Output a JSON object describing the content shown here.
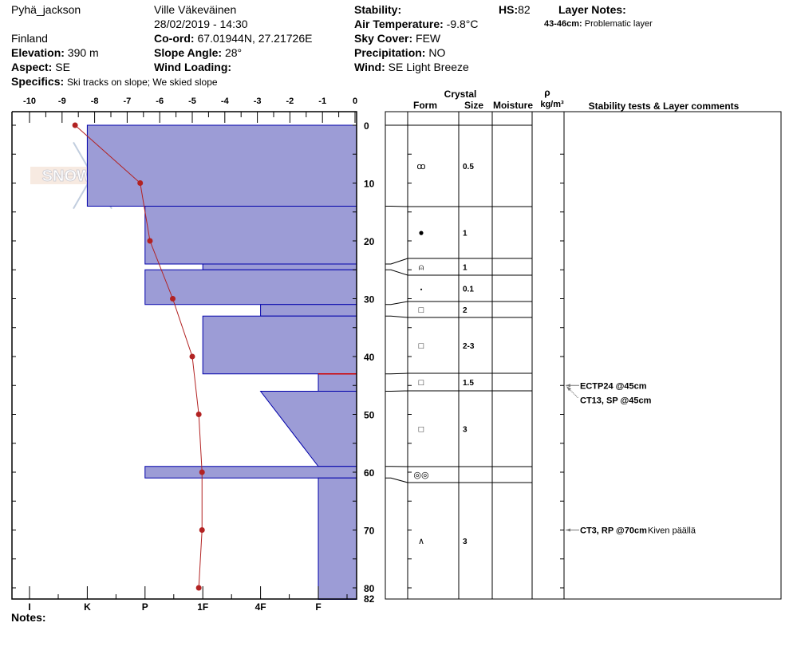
{
  "header": {
    "location": "Pyhä_jackson",
    "observer": "Ville Väkeväinen",
    "datetime": "28/02/2019 - 14:30",
    "country": "Finland",
    "coord_label": "Co-ord:",
    "coord": "67.01944N, 27.21726E",
    "elevation_label": "Elevation:",
    "elevation": "390 m",
    "slope_label": "Slope Angle:",
    "slope": "28°",
    "aspect_label": "Aspect:",
    "aspect": "SE",
    "wind_loading_label": "Wind Loading:",
    "wind_loading": "",
    "specifics_label": "Specifics:",
    "specifics": "Ski tracks on slope; We skied slope",
    "stability_label": "Stability:",
    "stability": "",
    "air_temp_label": "Air Temperature:",
    "air_temp": "-9.8°C",
    "sky_label": "Sky Cover:",
    "sky": "FEW",
    "precip_label": "Precipitation:",
    "precip": "NO",
    "wind_label": "Wind:",
    "wind": "SE  Light Breeze",
    "hs_label": "HS:",
    "hs": "82",
    "layer_notes_label": "Layer Notes:",
    "layer_notes": [
      {
        "range": "43-46cm:",
        "text": "Problematic layer"
      }
    ]
  },
  "notes_label": "Notes:",
  "logo_text": "SNOW PILOT",
  "table_headers": {
    "crystal": "Crystal",
    "form": "Form",
    "size": "Size",
    "moisture": "Moisture",
    "rho": "ρ",
    "density": "kg/m³",
    "comments": "Stability tests & Layer comments"
  },
  "colors": {
    "layer_fill": "#9c9cd6",
    "layer_stroke": "#0000aa",
    "temp_line": "#b22222"
  },
  "chart_data": {
    "type": "snow-profile",
    "temperature_axis": {
      "ticks": [
        -10,
        -9,
        -8,
        -7,
        -6,
        -5,
        -4,
        -3,
        -2,
        -1,
        0
      ],
      "range": [
        -10,
        0
      ],
      "unit": "°C",
      "position": "top"
    },
    "hardness_axis": {
      "ticks": [
        "I",
        "K",
        "P",
        "1F",
        "4F",
        "F"
      ],
      "position": "bottom"
    },
    "depth_axis": {
      "ticks": [
        0,
        10,
        20,
        30,
        40,
        50,
        60,
        70,
        80,
        82
      ],
      "range": [
        0,
        82
      ],
      "unit": "cm"
    },
    "layers": [
      {
        "top": 0,
        "bottom": 14,
        "hardness_top": "K",
        "hardness_bottom": "K",
        "form": "precipitation-particles",
        "size": "0.5"
      },
      {
        "top": 14,
        "bottom": 24,
        "hardness_top": "P",
        "hardness_bottom": "P",
        "form": "rounded-grains",
        "size": "1"
      },
      {
        "top": 24,
        "bottom": 25,
        "hardness_top": "1F",
        "hardness_bottom": "1F",
        "form": "melt-freeze-crust",
        "size": "1"
      },
      {
        "top": 25,
        "bottom": 31,
        "hardness_top": "P",
        "hardness_bottom": "P",
        "form": "small-rounded",
        "size": "0.1"
      },
      {
        "top": 31,
        "bottom": 33,
        "hardness_top": "4F",
        "hardness_bottom": "4F",
        "form": "faceted-crystals",
        "size": "2"
      },
      {
        "top": 33,
        "bottom": 43,
        "hardness_top": "1F",
        "hardness_bottom": "1F",
        "form": "faceted-crystals",
        "size": "2-3"
      },
      {
        "top": 43,
        "bottom": 46,
        "hardness_top": "F",
        "hardness_bottom": "F",
        "form": "faceted-crystals",
        "size": "1.5"
      },
      {
        "top": 46,
        "bottom": 59,
        "hardness_top": "4F",
        "hardness_bottom": "F",
        "form": "faceted-crystals",
        "size": "3"
      },
      {
        "top": 59,
        "bottom": 61,
        "hardness_top": "P",
        "hardness_bottom": "P",
        "form": "surface-hoar",
        "size": ""
      },
      {
        "top": 61,
        "bottom": 82,
        "hardness_top": "F",
        "hardness_bottom": "F",
        "form": "depth-hoar",
        "size": "3"
      }
    ],
    "temperature_profile": [
      {
        "depth": 0,
        "temp": -8.6
      },
      {
        "depth": 10,
        "temp": -6.6
      },
      {
        "depth": 20,
        "temp": -6.3
      },
      {
        "depth": 30,
        "temp": -5.6
      },
      {
        "depth": 40,
        "temp": -5.0
      },
      {
        "depth": 50,
        "temp": -4.8
      },
      {
        "depth": 60,
        "temp": -4.7
      },
      {
        "depth": 70,
        "temp": -4.7
      },
      {
        "depth": 80,
        "temp": -4.8
      }
    ],
    "stability_tests": [
      {
        "depth": 45,
        "text": "ECTP24 @45cm",
        "comment": ""
      },
      {
        "depth": 45,
        "text": "CT13, SP @45cm",
        "comment": ""
      },
      {
        "depth": 70,
        "text": "CT3, RP @70cm",
        "comment": "Kiven päällä"
      }
    ]
  }
}
